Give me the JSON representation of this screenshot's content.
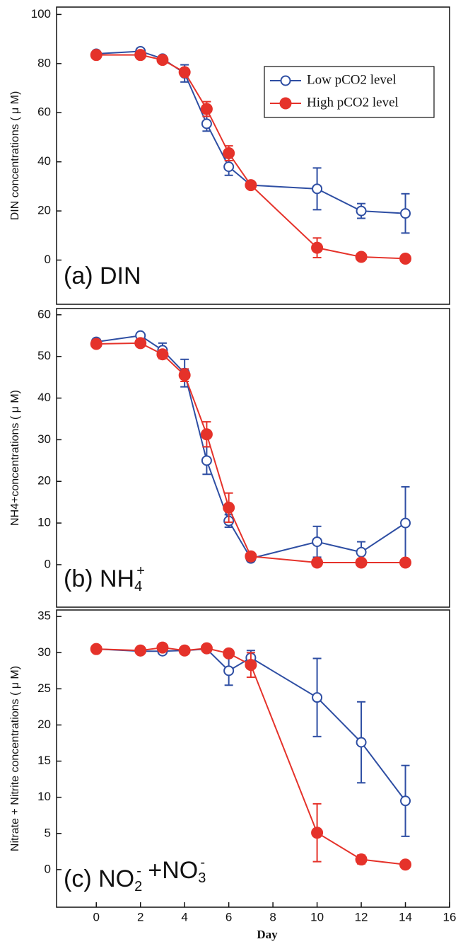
{
  "chart_data": [
    {
      "type": "line",
      "ylabel": "DIN  concentrations ( μ M)",
      "annotation": [
        {
          "text": "(a) DIN"
        }
      ],
      "x": [
        0,
        2,
        3,
        4,
        5,
        6,
        7,
        10,
        12,
        14
      ],
      "xlim": [
        -1.8,
        16
      ],
      "ylim": [
        -18,
        103
      ],
      "yticks": [
        0,
        20,
        40,
        60,
        80,
        100
      ],
      "legend": "upper right",
      "series": [
        {
          "name": "Low pCO2 level",
          "color": "#2e4ea3",
          "marker": "open",
          "values": [
            84,
            85,
            82,
            76,
            55.5,
            38,
            30.5,
            29,
            20,
            19
          ],
          "errors": [
            1,
            1,
            1,
            3.5,
            3,
            3.5,
            1,
            8.5,
            3,
            8
          ]
        },
        {
          "name": "High pCO2 level",
          "color": "#e5322a",
          "marker": "filled",
          "values": [
            83.5,
            83.5,
            81.5,
            76.5,
            61.5,
            43.5,
            30.5,
            5,
            1.3,
            0.6
          ],
          "errors": [
            1,
            1,
            1,
            1,
            3,
            3,
            1,
            4,
            1,
            0.5
          ]
        }
      ]
    },
    {
      "type": "line",
      "ylabel": "NH4+concentrations ( μ M)",
      "annotation": [
        {
          "text": "(b) NH"
        },
        {
          "sub": "4"
        },
        {
          "sup": "+"
        }
      ],
      "x": [
        0,
        2,
        3,
        4,
        5,
        6,
        7,
        10,
        12,
        14
      ],
      "xlim": [
        -1.8,
        16
      ],
      "ylim": [
        -10.2,
        61.5
      ],
      "yticks": [
        0,
        10,
        20,
        30,
        40,
        50,
        60
      ],
      "series": [
        {
          "color": "#2e4ea3",
          "marker": "open",
          "values": [
            53.5,
            55,
            51.5,
            46,
            25,
            10.5,
            1.5,
            5.5,
            3,
            10
          ],
          "errors": [
            0.5,
            0.5,
            1.7,
            3.3,
            3.3,
            1.5,
            0.5,
            3.7,
            2.5,
            8.7
          ]
        },
        {
          "color": "#e5322a",
          "marker": "filled",
          "values": [
            53,
            53.2,
            50.5,
            45.5,
            31.3,
            13.7,
            2,
            0.5,
            0.5,
            0.5
          ],
          "errors": [
            0.5,
            0.5,
            1,
            1.5,
            3,
            3.5,
            0.5,
            0.3,
            0.3,
            0.3
          ]
        }
      ]
    },
    {
      "type": "line",
      "ylabel": "Nitrate + Nitrite concentrations ( μ M)",
      "xlabel": "Day",
      "annotation": [
        {
          "text": "(c) NO"
        },
        {
          "sub": "2"
        },
        {
          "sup": "-"
        },
        {
          "text": " +NO"
        },
        {
          "sub": "3"
        },
        {
          "sup": "-"
        }
      ],
      "x": [
        0,
        2,
        3,
        4,
        5,
        6,
        7,
        10,
        12,
        14
      ],
      "xlim": [
        -1.8,
        16
      ],
      "xticks": [
        0,
        2,
        4,
        6,
        8,
        10,
        12,
        14,
        16
      ],
      "ylim": [
        -5.2,
        35.9
      ],
      "yticks": [
        0,
        5,
        10,
        15,
        20,
        25,
        30,
        35
      ],
      "series": [
        {
          "color": "#2e4ea3",
          "marker": "open",
          "values": [
            30.5,
            30.2,
            30.2,
            30.3,
            30.5,
            27.5,
            29.3,
            23.8,
            17.6,
            9.5
          ],
          "errors": [
            0.3,
            0.3,
            0.3,
            0.3,
            0.3,
            2,
            1,
            5.4,
            5.6,
            4.9
          ]
        },
        {
          "color": "#e5322a",
          "marker": "filled",
          "values": [
            30.5,
            30.3,
            30.7,
            30.3,
            30.6,
            29.9,
            28.3,
            5.1,
            1.4,
            0.7
          ],
          "errors": [
            0.2,
            0.2,
            0.2,
            0.2,
            0.2,
            0.2,
            1.7,
            4,
            0.6,
            0.2
          ]
        }
      ]
    }
  ]
}
